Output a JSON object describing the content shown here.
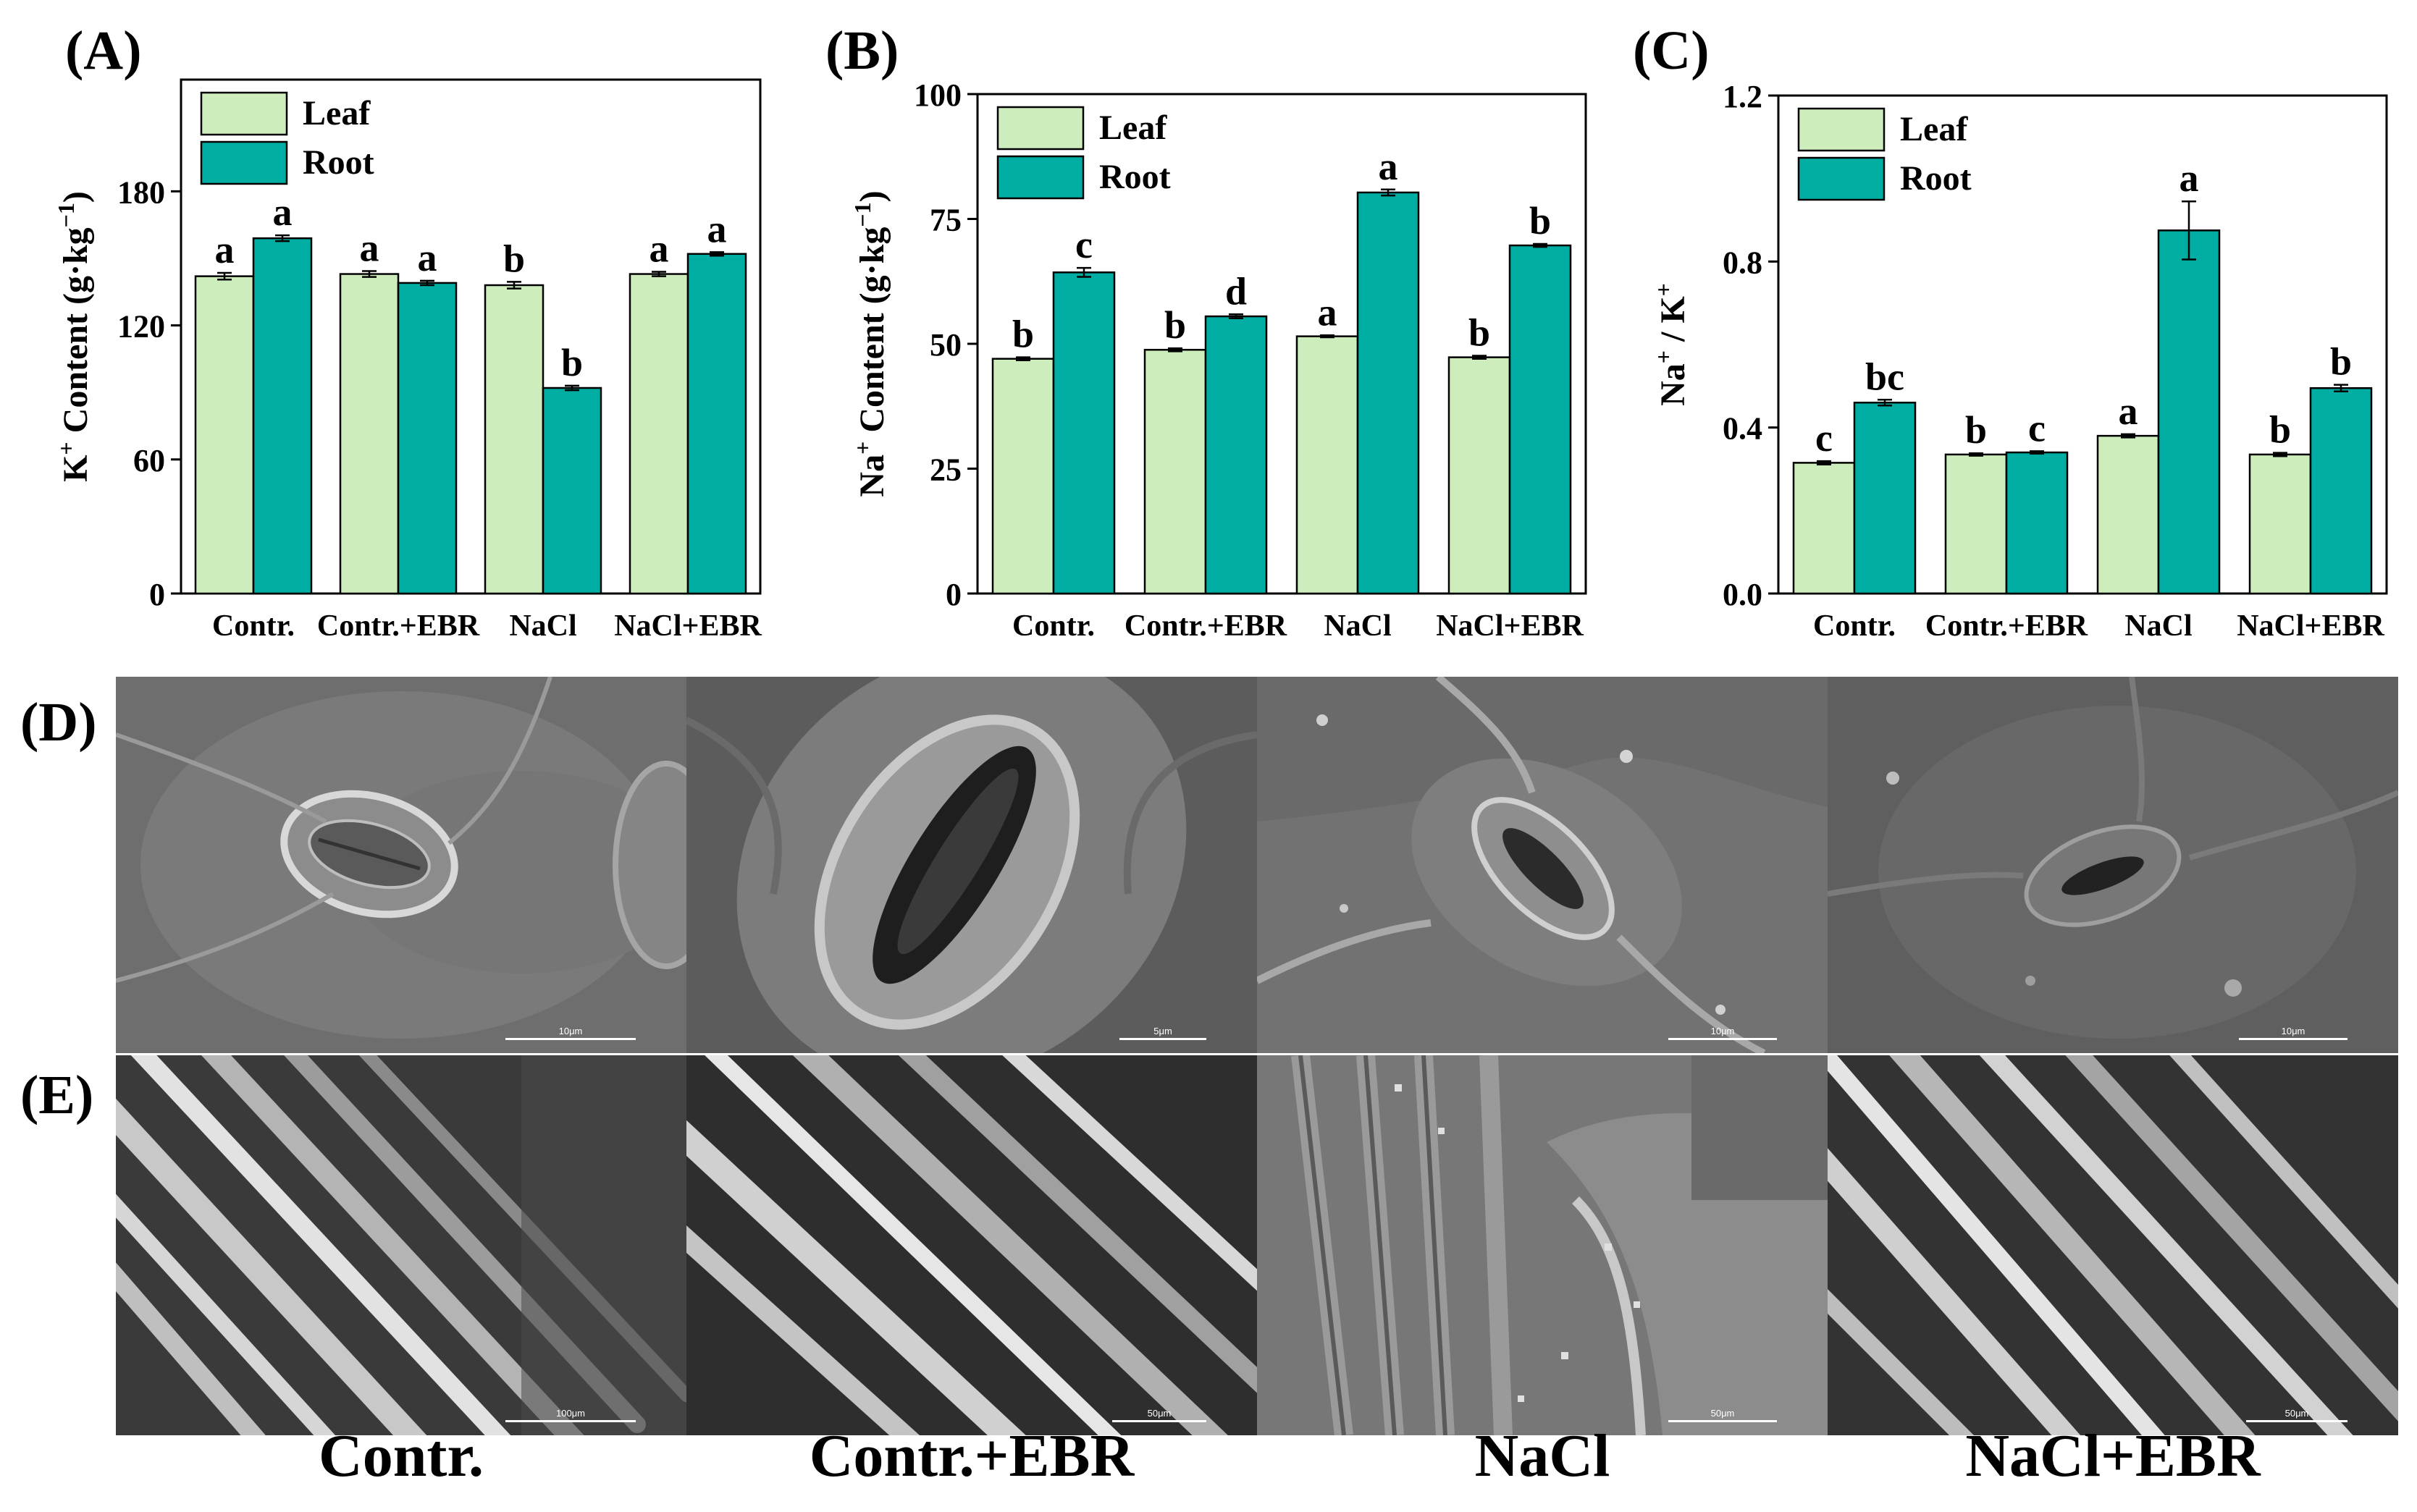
{
  "chart_data": [
    {
      "type": "bar",
      "label": "(A)",
      "ylabel_main": "K",
      "ylabel_sup": "+",
      "ylabel_rest": " Content (g·kg",
      "ylabel_unitsup": "−1",
      "ylabel_end": ")",
      "categories": [
        "Contr.",
        "Contr.+EBR",
        "NaCl",
        "NaCl+EBR"
      ],
      "ylim": [
        0,
        230
      ],
      "yticks": [
        0,
        60,
        120,
        180
      ],
      "yticklabels": [
        "0",
        "60",
        "120",
        "180"
      ],
      "legend": "top-left",
      "series": [
        {
          "name": "Leaf",
          "color": "#cdeebc",
          "values": [
            142,
            143,
            138,
            143
          ],
          "errors": [
            1.5,
            1.3,
            1.5,
            1.0
          ],
          "letters": [
            "a",
            "a",
            "b",
            "a"
          ]
        },
        {
          "name": "Root",
          "color": "#00ada3",
          "values": [
            159,
            139,
            92,
            152
          ],
          "errors": [
            1.3,
            1.0,
            1.0,
            0.8
          ],
          "letters": [
            "a",
            "a",
            "b",
            "a"
          ]
        }
      ]
    },
    {
      "type": "bar",
      "label": "(B)",
      "ylabel_main": "Na",
      "ylabel_sup": "+",
      "ylabel_rest": " Content (g·kg",
      "ylabel_unitsup": "−1",
      "ylabel_end": ")",
      "categories": [
        "Contr.",
        "Contr.+EBR",
        "NaCl",
        "NaCl+EBR"
      ],
      "ylim": [
        0,
        100
      ],
      "yticks": [
        0,
        25,
        50,
        75,
        100
      ],
      "yticklabels": [
        "0",
        "25",
        "50",
        "75",
        "100"
      ],
      "legend": "top-left",
      "series": [
        {
          "name": "Leaf",
          "color": "#cdeebc",
          "values": [
            47,
            48.8,
            51.5,
            47.3
          ],
          "errors": [
            0.3,
            0.3,
            0.2,
            0.3
          ],
          "letters": [
            "b",
            "b",
            "a",
            "b"
          ]
        },
        {
          "name": "Root",
          "color": "#00ada3",
          "values": [
            64.3,
            55.5,
            80.3,
            69.7
          ],
          "errors": [
            0.9,
            0.4,
            0.6,
            0.3
          ],
          "letters": [
            "c",
            "d",
            "a",
            "b"
          ]
        }
      ]
    },
    {
      "type": "bar",
      "label": "(C)",
      "ylabel_main": "Na",
      "ylabel_sup": "+",
      "ylabel_rest": " / K",
      "ylabel_unitsup": "+",
      "ylabel_end": "",
      "categories": [
        "Contr.",
        "Contr.+EBR",
        "NaCl",
        "NaCl+EBR"
      ],
      "ylim": [
        0,
        1.2
      ],
      "yticks": [
        0,
        0.4,
        0.8,
        1.2
      ],
      "yticklabels": [
        "0.0",
        "0.4",
        "0.8",
        "1.2"
      ],
      "legend": "top-left",
      "series": [
        {
          "name": "Leaf",
          "color": "#cdeebc",
          "values": [
            0.315,
            0.335,
            0.38,
            0.335
          ],
          "errors": [
            0.004,
            0.003,
            0.004,
            0.004
          ],
          "letters": [
            "c",
            "b",
            "a",
            "b"
          ]
        },
        {
          "name": "Root",
          "color": "#00ada3",
          "values": [
            0.46,
            0.34,
            0.875,
            0.495
          ],
          "errors": [
            0.007,
            0.003,
            0.07,
            0.008
          ],
          "letters": [
            "bc",
            "c",
            "a",
            "b"
          ]
        }
      ]
    }
  ],
  "panels": {
    "d_label": "(D)",
    "e_label": "(E)"
  },
  "scalebars": {
    "d": [
      "10μm",
      "5μm",
      "10μm",
      "10μm"
    ],
    "e": [
      "100μm",
      "50μm",
      "50μm",
      "50μm"
    ]
  },
  "captions": [
    "Contr.",
    "Contr.+EBR",
    "NaCl",
    "NaCl+EBR"
  ]
}
